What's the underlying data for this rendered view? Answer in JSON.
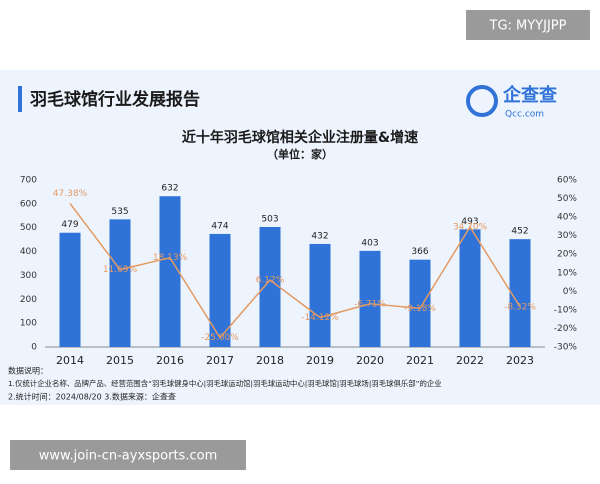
{
  "tag": "TG: MYYJJPP",
  "header": {
    "title": "羽毛球馆行业发展报告",
    "logo": "企查查",
    "logo_sub": "Qcc.com"
  },
  "chart_data": {
    "type": "bar",
    "title": "近十年羽毛球馆相关企业注册量&增速",
    "subtitle": "（单位：家）",
    "categories": [
      "2014",
      "2015",
      "2016",
      "2017",
      "2018",
      "2019",
      "2020",
      "2021",
      "2022",
      "2023"
    ],
    "series": [
      {
        "type": "bar",
        "color": "#2f72d8",
        "values": [
          479,
          535,
          632,
          474,
          503,
          432,
          403,
          366,
          493,
          452
        ]
      },
      {
        "type": "line",
        "axis": "y2",
        "color": "#e39a63",
        "values": [
          47.38,
          11.69,
          18.13,
          -25.0,
          6.12,
          -14.12,
          -6.71,
          -9.18,
          34.7,
          -8.32
        ],
        "value_labels": [
          "47.38%",
          "11.69%",
          "18.13%",
          "-25.00%",
          "6.12%",
          "-14.12%",
          "-6.71%",
          "-9.18%",
          "34.70%",
          "-8.32%"
        ]
      }
    ],
    "ylim": [
      0,
      700
    ],
    "yticks": [
      0,
      100,
      200,
      300,
      400,
      500,
      600,
      700
    ],
    "y2lim": [
      -30,
      60
    ],
    "y2ticks": [
      {
        "value": -30,
        "label": "-30%"
      },
      {
        "value": -20,
        "label": "-20%"
      },
      {
        "value": -10,
        "label": "-10%"
      },
      {
        "value": 0,
        "label": "0%"
      },
      {
        "value": 10,
        "label": "10%"
      },
      {
        "value": 20,
        "label": "20%"
      },
      {
        "value": 30,
        "label": "30%"
      },
      {
        "value": 40,
        "label": "40%"
      },
      {
        "value": 50,
        "label": "50%"
      },
      {
        "value": 60,
        "label": "60%"
      }
    ],
    "grid": false
  },
  "notes": [
    "数据说明：",
    "1.仅统计企业名称、品牌产品、经营范围含“羽毛球健身中心|羽毛球运动馆|羽毛球运动中心|羽毛球馆|羽毛球场|羽毛球俱乐部”的企业",
    "2.统计时间：2024/08/20    3.数据来源：企查查"
  ],
  "footer": "www.join-cn-ayxsports.com"
}
